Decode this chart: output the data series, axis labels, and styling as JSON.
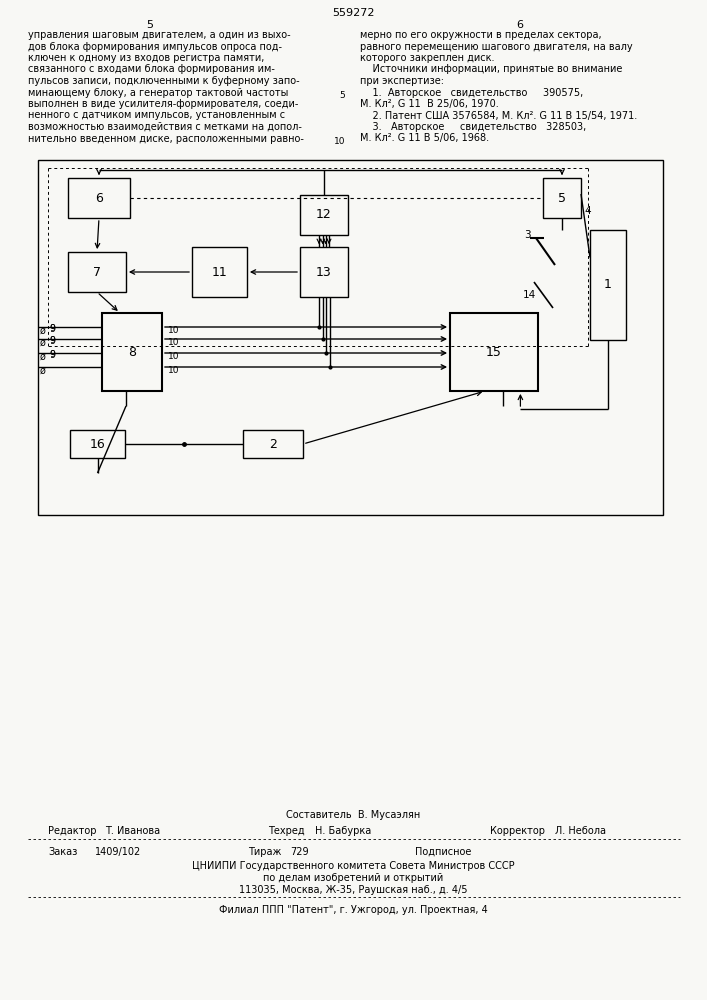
{
  "page_number": "559272",
  "col_left": "5",
  "col_right": "6",
  "bg_color": "#f8f8f5",
  "footer_composer": "Составитель  В. Мусаэлян",
  "footer_editor_label": "Редактор",
  "footer_editor": "Т. Иванова",
  "footer_techred_label": "Техред",
  "footer_techred": "Н. Бабурка",
  "footer_corrector_label": "Корректор",
  "footer_corrector": "Л. Небола",
  "footer_order_label": "Заказ",
  "footer_order": "1409/102",
  "footer_tirazh_label": "Тираж",
  "footer_tirazh": "729",
  "footer_podpisnoe": "Подписное",
  "footer_org1": "ЦНИИПИ Государственного комитета Совета Министров СССР",
  "footer_org2": "по делам изобретений и открытий",
  "footer_org3": "113035, Москва, Ж-35, Раушская наб., д. 4/5",
  "footer_branch": "Филиал ППП \"Патент\", г. Ужгород, ул. Проектная, 4"
}
